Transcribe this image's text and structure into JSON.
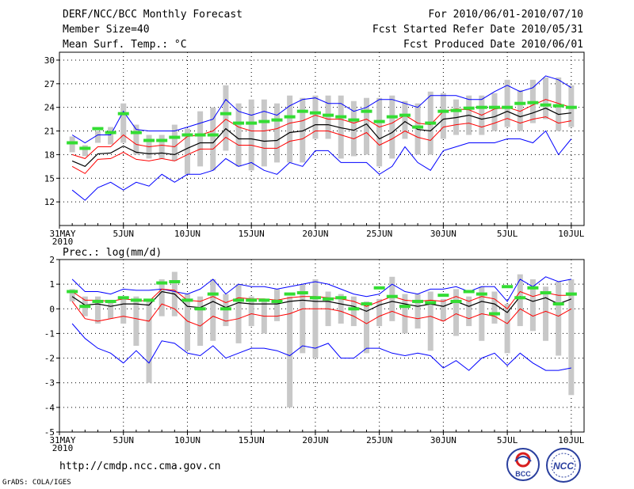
{
  "header": {
    "title": "DERF/NCC/BCC Monthly Forecast",
    "member_size": "Member Size=40",
    "variable": "Mean Surf. Temp.: °C",
    "fcst_period": "For 2010/06/01-2010/07/10",
    "fcst_started": "Fcst Started Refer Date 2010/05/31",
    "fcst_produced": "Fcst Produced Date 2010/06/01"
  },
  "footer": {
    "url": "http://cmdp.ncc.cma.gov.cn",
    "grads": "GrADS: COLA/IGES",
    "logo_bcc": "BCC",
    "logo_ncc": "NCC"
  },
  "colors": {
    "max_min": "#0000ff",
    "p25_p75": "#ff0000",
    "mean": "#000000",
    "ens_bar": "#c8c8c8",
    "obs_marker": "#33dd33"
  },
  "chart_data": [
    {
      "type": "line",
      "title": "Mean Surf. Temp.: °C",
      "x_tick_labels": [
        "31MAY\n2010",
        "5JUN",
        "10JUN",
        "15JUN",
        "20JUN",
        "25JUN",
        "30JUN",
        "5JUL",
        "10JUL"
      ],
      "x_tick_days": [
        0,
        5,
        10,
        15,
        20,
        25,
        30,
        35,
        40
      ],
      "ylim": [
        9,
        31
      ],
      "yticks": [
        12,
        15,
        18,
        21,
        24,
        27,
        30
      ],
      "grid": true,
      "days": [
        1,
        2,
        3,
        4,
        5,
        6,
        7,
        8,
        9,
        10,
        11,
        12,
        13,
        14,
        15,
        16,
        17,
        18,
        19,
        20,
        21,
        22,
        23,
        24,
        25,
        26,
        27,
        28,
        29,
        30,
        31,
        32,
        33,
        34,
        35,
        36,
        37,
        38,
        39,
        40
      ],
      "series": [
        {
          "name": "max",
          "values": [
            20.5,
            19.5,
            20.5,
            20.5,
            23.5,
            21.2,
            21,
            21,
            21,
            21.5,
            22,
            22.5,
            25,
            23.5,
            23,
            23.5,
            23,
            24.2,
            25,
            25.2,
            24.5,
            24.5,
            23.5,
            24,
            25,
            25,
            24.5,
            24,
            25.5,
            25.5,
            25.5,
            25,
            25,
            26,
            26.8,
            26,
            26.5,
            28,
            27.5,
            26.5
          ]
        },
        {
          "name": "p75",
          "values": [
            18,
            17.5,
            19,
            19,
            20.5,
            19.3,
            19,
            19.2,
            19,
            20.3,
            20.5,
            21,
            22.5,
            21.5,
            21,
            21,
            21.3,
            22,
            22.3,
            23,
            22.5,
            22.5,
            22,
            22.5,
            21.5,
            22,
            23,
            22,
            21.8,
            23.5,
            23.8,
            23.7,
            23,
            23.8,
            24,
            23.5,
            24.3,
            25,
            24.5,
            24
          ]
        },
        {
          "name": "mean",
          "values": [
            17.2,
            16.5,
            18.1,
            18.2,
            19.1,
            18.3,
            18.1,
            18.2,
            18,
            18.8,
            19.5,
            19.5,
            21.3,
            20,
            20,
            19.7,
            19.8,
            20.8,
            21,
            21.8,
            21.8,
            21.4,
            21.1,
            21.9,
            20,
            20.8,
            22.2,
            21.2,
            21,
            22.5,
            22.7,
            23,
            22.5,
            22.8,
            23.5,
            22.8,
            23.3,
            23.9,
            23.1,
            23.3
          ]
        },
        {
          "name": "p25",
          "values": [
            16.5,
            15.6,
            17.4,
            17.5,
            18.3,
            17.4,
            17.2,
            17.5,
            17.2,
            18,
            18.7,
            18.7,
            20.2,
            19.2,
            19.2,
            18.8,
            18.8,
            19.7,
            20,
            21,
            21,
            20.5,
            20,
            20.8,
            19.2,
            20,
            21,
            20.2,
            19.8,
            21.5,
            21.8,
            22,
            21.5,
            22,
            22.6,
            22,
            22.5,
            22.8,
            22,
            22.3
          ]
        },
        {
          "name": "min",
          "values": [
            13.5,
            12.2,
            13.8,
            14.5,
            13.5,
            14.5,
            14,
            15.5,
            14.5,
            15.5,
            15.5,
            16,
            17.5,
            16.5,
            17,
            16,
            15.5,
            17,
            16.5,
            18.5,
            18.5,
            17,
            17,
            17,
            15.5,
            16.5,
            19,
            17,
            16,
            18.5,
            19,
            19.5,
            19.5,
            19.5,
            20,
            20,
            19.5,
            21,
            18,
            20
          ]
        },
        {
          "name": "ens_bar_top",
          "values": [
            20.3,
            19.2,
            21,
            21.5,
            24.5,
            21.8,
            20.5,
            20.5,
            21.8,
            21.3,
            23.5,
            24,
            26.8,
            24.5,
            25,
            25,
            24.5,
            25.5,
            25.2,
            25.5,
            25.5,
            25.5,
            24.8,
            25.2,
            25.2,
            25.5,
            24.8,
            24.5,
            26,
            25.8,
            25,
            25.5,
            25.5,
            25.8,
            27.5,
            26.2,
            27.5,
            27.8,
            27.8,
            26.8
          ]
        },
        {
          "name": "ens_bar_bottom",
          "values": [
            18.3,
            17.8,
            19.5,
            19.3,
            19.5,
            18,
            17.5,
            17.5,
            17.2,
            15.5,
            16.5,
            16,
            18.5,
            16.5,
            16,
            16.5,
            17,
            17,
            17,
            20,
            20,
            17.5,
            17.8,
            18,
            16.5,
            17.5,
            20,
            18,
            18,
            20,
            20.5,
            20.5,
            20.5,
            21,
            21.5,
            21,
            22,
            22.5,
            21,
            21.5
          ]
        },
        {
          "name": "obs",
          "values": [
            19.5,
            18.8,
            21.3,
            20.8,
            23.2,
            20.8,
            19.8,
            19.8,
            20.2,
            20.5,
            20.5,
            20.5,
            23.2,
            22,
            22,
            22.2,
            22.4,
            22.8,
            23.5,
            23.3,
            23,
            22.8,
            22.4,
            23.5,
            22.2,
            22.8,
            23,
            21.5,
            22,
            23.5,
            23.6,
            23.9,
            24,
            24,
            24,
            24.5,
            24.6,
            24.3,
            24.2,
            24
          ]
        }
      ]
    },
    {
      "type": "line",
      "title": "Prec.: log(mm/d)",
      "x_tick_labels": [
        "31MAY\n2010",
        "5JUN",
        "10JUN",
        "15JUN",
        "20JUN",
        "25JUN",
        "30JUN",
        "5JUL",
        "10JUL"
      ],
      "x_tick_days": [
        0,
        5,
        10,
        15,
        20,
        25,
        30,
        35,
        40
      ],
      "ylim": [
        -5,
        2
      ],
      "yticks": [
        -5,
        -4,
        -3,
        -2,
        -1,
        0,
        1,
        2
      ],
      "grid": true,
      "days": [
        1,
        2,
        3,
        4,
        5,
        6,
        7,
        8,
        9,
        10,
        11,
        12,
        13,
        14,
        15,
        16,
        17,
        18,
        19,
        20,
        21,
        22,
        23,
        24,
        25,
        26,
        27,
        28,
        29,
        30,
        31,
        32,
        33,
        34,
        35,
        36,
        37,
        38,
        39,
        40
      ],
      "series": [
        {
          "name": "max",
          "values": [
            1.2,
            0.7,
            0.7,
            0.6,
            0.8,
            0.75,
            0.75,
            0.8,
            0.7,
            0.6,
            0.8,
            1.2,
            0.6,
            1,
            0.9,
            0.9,
            0.8,
            0.9,
            1,
            1.1,
            1,
            0.8,
            0.6,
            0.5,
            0.6,
            1,
            0.7,
            0.6,
            0.8,
            0.8,
            0.9,
            0.7,
            0.9,
            0.9,
            0.3,
            1.2,
            0.9,
            1.3,
            1.1,
            1.2
          ]
        },
        {
          "name": "p75",
          "values": [
            0.7,
            0.35,
            0.35,
            0.3,
            0.4,
            0.35,
            0.3,
            0.8,
            0.75,
            0.35,
            0.3,
            0.5,
            0.25,
            0.45,
            0.4,
            0.4,
            0.35,
            0.45,
            0.5,
            0.5,
            0.45,
            0.4,
            0.3,
            0.1,
            0.3,
            0.5,
            0.35,
            0.3,
            0.35,
            0.3,
            0.5,
            0.3,
            0.5,
            0.4,
            0,
            0.7,
            0.5,
            0.65,
            0.55,
            0.55
          ]
        },
        {
          "name": "mean",
          "values": [
            0.5,
            0.15,
            0.2,
            0.1,
            0.2,
            0.2,
            0.15,
            0.7,
            0.6,
            0.1,
            0.05,
            0.3,
            0.05,
            0.25,
            0.2,
            0.2,
            0.2,
            0.3,
            0.35,
            0.3,
            0.3,
            0.2,
            0.1,
            -0.1,
            0.15,
            0.3,
            0.2,
            0.1,
            0.2,
            0.1,
            0.3,
            0.1,
            0.3,
            0.2,
            -0.15,
            0.5,
            0.3,
            0.45,
            0.2,
            0.4
          ]
        },
        {
          "name": "p25",
          "values": [
            0.3,
            -0.4,
            -0.5,
            -0.4,
            -0.3,
            -0.4,
            -0.5,
            0.2,
            0,
            -0.5,
            -0.7,
            -0.3,
            -0.5,
            -0.4,
            -0.2,
            -0.3,
            -0.3,
            -0.2,
            0,
            0,
            0,
            -0.1,
            -0.3,
            -0.6,
            -0.3,
            -0.1,
            -0.3,
            -0.4,
            -0.3,
            -0.5,
            -0.2,
            -0.4,
            -0.2,
            -0.3,
            -0.6,
            0,
            -0.3,
            -0.1,
            -0.3,
            0
          ]
        },
        {
          "name": "min",
          "values": [
            -0.6,
            -1.2,
            -1.6,
            -1.8,
            -2.2,
            -1.7,
            -2.2,
            -1.3,
            -1.4,
            -1.8,
            -1.9,
            -1.5,
            -2,
            -1.8,
            -1.6,
            -1.6,
            -1.7,
            -1.9,
            -1.5,
            -1.6,
            -1.4,
            -2,
            -2,
            -1.6,
            -1.6,
            -1.8,
            -1.9,
            -1.8,
            -1.9,
            -2.4,
            -2.1,
            -2.5,
            -2,
            -1.8,
            -2.3,
            -1.8,
            -2.2,
            -2.5,
            -2.5,
            -2.4
          ]
        },
        {
          "name": "ens_bar_top",
          "values": [
            0.8,
            0.5,
            0.5,
            0.3,
            0.5,
            0.5,
            0.4,
            1.2,
            1.5,
            0.6,
            0.5,
            1.2,
            0.6,
            1,
            0.5,
            0.4,
            0.8,
            0.5,
            1,
            1.2,
            0.7,
            0.6,
            0.5,
            0.3,
            0.4,
            1.3,
            0.6,
            0.6,
            0.7,
            0.4,
            0.8,
            0.5,
            0.9,
            0.7,
            0.2,
            1.4,
            1.2,
            0.9,
            1.1,
            1.2
          ]
        },
        {
          "name": "ens_bar_bottom",
          "values": [
            0.3,
            -0.3,
            -0.6,
            -0.4,
            -0.6,
            -1.5,
            -3,
            -0.3,
            -0.3,
            -1.7,
            -1.5,
            -1.3,
            -0.7,
            -1.4,
            -0.7,
            -1,
            -0.5,
            -4,
            -1.8,
            -2,
            -0.7,
            -0.6,
            -0.7,
            -1.8,
            -0.7,
            -0.5,
            -1,
            -0.8,
            -1.7,
            -0.5,
            -1.1,
            -0.7,
            -1.3,
            -0.6,
            -1.8,
            -0.7,
            -0.9,
            -1.3,
            -1.9,
            -3.5
          ]
        },
        {
          "name": "obs",
          "values": [
            0.7,
            0.1,
            0.3,
            0.3,
            0.45,
            0.35,
            0.35,
            1.05,
            1.1,
            0.35,
            0,
            0.6,
            0,
            0.35,
            0.35,
            0.35,
            0.3,
            0.6,
            0.65,
            0.45,
            0.4,
            0.45,
            0,
            0.2,
            0.85,
            0.5,
            0.1,
            0.3,
            0.25,
            0.55,
            0.3,
            0.7,
            0.6,
            -0.2,
            0.9,
            0.45,
            0.85,
            0.65,
            0.2,
            0.6
          ]
        }
      ]
    }
  ]
}
